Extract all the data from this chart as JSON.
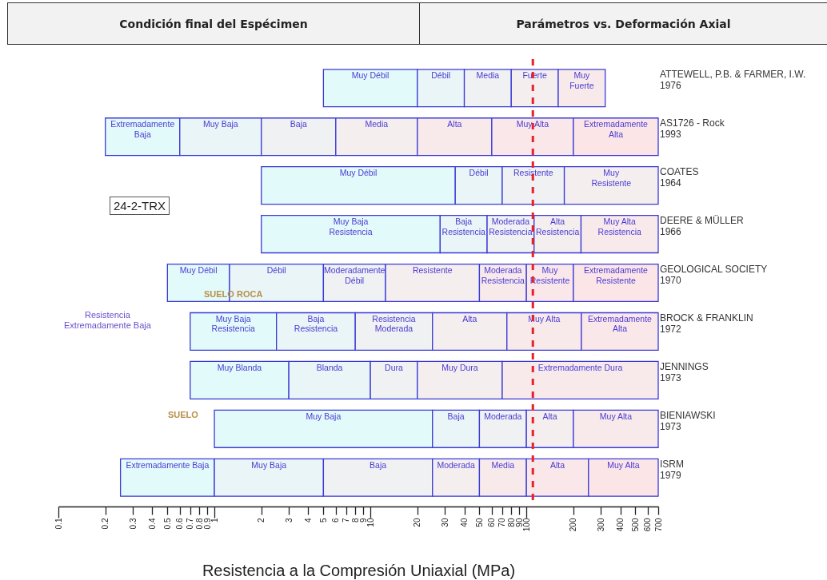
{
  "chart_data": {
    "type": "bar",
    "orientation": "horizontal",
    "log": "x",
    "xlabel": "Resistencia a la Compresión Uniaxial (MPa)",
    "categories": [
      "ATTEWELL, P.B. & FARMER, I.W.\n1976",
      "AS1726 - Rock\n1993",
      "COATES\n1964",
      "DEERE & MÜLLER\n1966",
      "GEOLOGICAL SOCIETY\n1970",
      "BROCK & FRANKLIN\n1972",
      "JENNINGS\n1973",
      "BIENIAWSKI\n1973",
      "ISRM\n1979"
    ],
    "series": [
      {
        "color": "#e3fafa",
        "base": [
          5,
          0.2,
          2,
          2,
          0.5,
          0.7,
          0.7,
          1,
          0.25
        ],
        "values": [
          15,
          0.4,
          33,
          26,
          0.75,
          1.8,
          2.3,
          24,
          0.75
        ],
        "value_labels": [
          "Muy Débil",
          "Extremadamente\nBaja",
          "Muy Débil",
          "Muy Baja\nResistencia",
          "Muy Débil",
          "Muy Baja\nResistencia",
          "Muy Blanda",
          "Muy Baja",
          "Extremadamente Baja"
        ]
      },
      {
        "color": "#e9f5f6",
        "base": [
          20,
          0.6,
          35,
          28,
          1.25,
          2.5,
          3,
          25,
          1
        ],
        "values": [
          20,
          1.4,
          35,
          28,
          3.75,
          5.5,
          7,
          25,
          4
        ],
        "value_labels": [
          "Débil",
          "Muy Baja",
          "Débil",
          "Baja\nResistencia",
          "Débil",
          "Baja\nResistencia",
          "Blanda",
          "Baja",
          "Muy Baja"
        ]
      },
      {
        "color": "#eff1f2",
        "base": [
          40,
          2,
          70,
          56,
          5,
          8,
          10,
          50,
          5
        ],
        "values": [
          40,
          4,
          105,
          56,
          7.5,
          17,
          10,
          50,
          20
        ],
        "value_labels": [
          "Media",
          "Baja",
          "Resistente",
          "Moderada\nResistencia",
          "Moderadamente\nDébil",
          "Resistencia\nModerada",
          "Dura",
          "Moderada",
          "Baja"
        ]
      },
      {
        "color": "#f4eeee",
        "base": [
          80,
          6,
          175,
          112,
          12.5,
          25,
          20,
          100,
          25
        ],
        "values": [
          80,
          14,
          525,
          112,
          37.5,
          50,
          50,
          100,
          25
        ],
        "value_labels": [
          "Fuerte",
          "Media",
          "Muy\nResistente",
          "Alta\nResistencia",
          "Resistente",
          "Alta",
          "Muy Dura",
          "Alta",
          "Moderada"
        ]
      },
      {
        "color": "#f8eaeb",
        "base": [
          160,
          20,
          null,
          224,
          50,
          75,
          70,
          200,
          50
        ],
        "values": [
          160,
          40,
          null,
          476,
          50,
          150,
          630,
          500,
          50
        ],
        "value_labels": [
          "Muy\nFuerte",
          "Alta",
          null,
          "Muy Alta\nResistencia",
          "Moderada\nResistencia",
          "Muy Alta",
          "Extremadamente Dura",
          "Muy Alta",
          "Media"
        ]
      },
      {
        "color": "#fae7e9",
        "base": [
          null,
          60,
          null,
          null,
          100,
          225,
          null,
          null,
          100
        ],
        "values": [
          null,
          140,
          null,
          null,
          100,
          475,
          null,
          null,
          150
        ],
        "value_labels": [
          null,
          "Muy Alta",
          null,
          null,
          "Muy\nResistente",
          "Extremadamente\nAlta",
          null,
          null,
          "Alta"
        ]
      },
      {
        "color": "#fbe5e7",
        "base": [
          null,
          200,
          null,
          null,
          200,
          null,
          null,
          null,
          250
        ],
        "values": [
          null,
          500,
          null,
          null,
          500,
          null,
          null,
          null,
          450
        ],
        "value_labels": [
          null,
          "Extremadamente\nAlta",
          null,
          null,
          "Extremadamente\nResistente",
          null,
          null,
          null,
          "Muy Alta"
        ]
      }
    ],
    "xlim": [
      0.1,
      700
    ],
    "xticks": [
      0.1,
      0.2,
      0.3,
      0.4,
      0.5,
      0.6,
      0.7,
      0.8,
      0.9,
      1,
      2,
      3,
      4,
      5,
      6,
      7,
      8,
      9,
      10,
      20,
      30,
      40,
      50,
      60,
      70,
      80,
      90,
      100,
      200,
      300,
      400,
      500,
      600,
      700
    ],
    "ref_lines": [
      {
        "axis": "x",
        "value": 110,
        "color": "#e8202a",
        "line_style": "dashed"
      }
    ],
    "grid": false,
    "annotations": [
      "Condición final del Espécimen",
      "Parámetros vs. Deformación Axial",
      "24-2-TRX",
      "SUELO ROCA",
      "Resistencia\nExtremadamente Baja",
      "SUELO"
    ]
  }
}
